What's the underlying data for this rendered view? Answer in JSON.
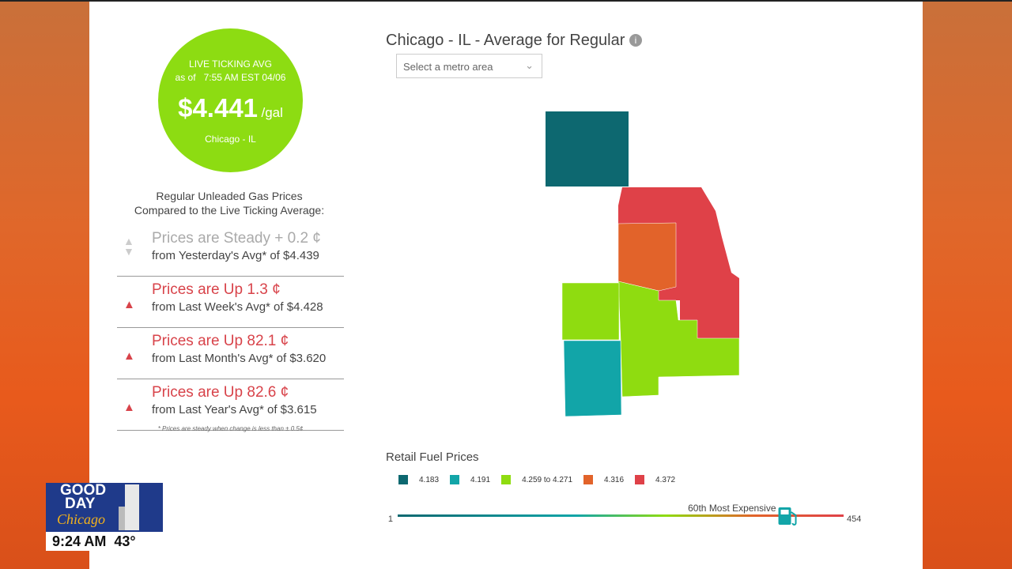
{
  "badge": {
    "heading": "LIVE TICKING AVG",
    "as_of": "as of",
    "time": "7:55 AM EST 04/06",
    "price": "$4.441",
    "unit": "/gal",
    "location": "Chicago - IL"
  },
  "comparison": {
    "title_lines": [
      "Regular Unleaded Gas Prices",
      "Compared to the Live Ticking Average:"
    ],
    "items": [
      {
        "status": "Prices are Steady + 0.2 ¢",
        "detail": "from Yesterday's Avg* of $4.439",
        "trend": "steady"
      },
      {
        "status": "Prices are Up 1.3 ¢",
        "detail": "from Last Week's Avg* of $4.428",
        "trend": "up"
      },
      {
        "status": "Prices are Up 82.1 ¢",
        "detail": "from Last Month's Avg* of $3.620",
        "trend": "up"
      },
      {
        "status": "Prices are Up 82.6 ¢",
        "detail": "from Last Year's Avg* of $3.615",
        "trend": "up"
      }
    ],
    "footnote": "* Prices are steady when change is less than ± 0.5¢"
  },
  "map": {
    "title": "Chicago - IL - Average for Regular",
    "select_placeholder": "Select a metro area"
  },
  "legend": {
    "title": "Retail Fuel Prices",
    "items": [
      {
        "label": "4.183",
        "color": "#0d6870"
      },
      {
        "label": "4.191",
        "color": "#12a5a8"
      },
      {
        "label": "4.259 to 4.271",
        "color": "#8fdc10"
      },
      {
        "label": "4.316",
        "color": "#e2632a"
      },
      {
        "label": "4.372",
        "color": "#df4148"
      }
    ]
  },
  "rank": {
    "min": 1,
    "max": 454,
    "value": 60,
    "label": "60th Most Expensive"
  },
  "overlay": {
    "show_line1": "GOOD",
    "show_line2": "DAY",
    "show_city": "Chicago",
    "time": "9:24 AM",
    "temperature": "43°"
  }
}
